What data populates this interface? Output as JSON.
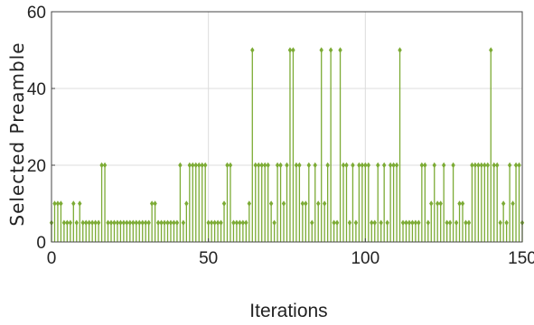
{
  "chart_data": {
    "type": "stem",
    "xlabel": "Iterations",
    "ylabel": "Selected Preamble",
    "xlim": [
      0,
      150
    ],
    "ylim": [
      0,
      60
    ],
    "xticks": [
      "0",
      "50",
      "100",
      "150"
    ],
    "yticks": [
      "0",
      "20",
      "40",
      "60"
    ],
    "grid": true,
    "color": "#7cab35",
    "series": [
      {
        "x": [
          0,
          1,
          2,
          3,
          4,
          5,
          6,
          7,
          8,
          9,
          10,
          11,
          12,
          13,
          14,
          15,
          16,
          17,
          18,
          19,
          20,
          21,
          22,
          23,
          24,
          25,
          26,
          27,
          28,
          29,
          30,
          31,
          32,
          33,
          34,
          35,
          36,
          37,
          38,
          39,
          40,
          41,
          42,
          43,
          44,
          45,
          46,
          47,
          48,
          49,
          50,
          51,
          52,
          53,
          54,
          55,
          56,
          57,
          58,
          59,
          60,
          61,
          62,
          63,
          64,
          65,
          66,
          67,
          68,
          69,
          70,
          71,
          72,
          73,
          74,
          75,
          76,
          77,
          78,
          79,
          80,
          81,
          82,
          83,
          84,
          85,
          86,
          87,
          88,
          89,
          90,
          91,
          92,
          93,
          94,
          95,
          96,
          97,
          98,
          99,
          100,
          101,
          102,
          103,
          104,
          105,
          106,
          107,
          108,
          109,
          110,
          111,
          112,
          113,
          114,
          115,
          116,
          117,
          118,
          119,
          120,
          121,
          122,
          123,
          124,
          125,
          126,
          127,
          128,
          129,
          130,
          131,
          132,
          133,
          134,
          135,
          136,
          137,
          138,
          139,
          140,
          141,
          142,
          143,
          144,
          145,
          146,
          147,
          148,
          149,
          150
        ],
        "y": [
          5,
          10,
          10,
          10,
          5,
          5,
          5,
          10,
          5,
          10,
          5,
          5,
          5,
          5,
          5,
          5,
          20,
          20,
          5,
          5,
          5,
          5,
          5,
          5,
          5,
          5,
          5,
          5,
          5,
          5,
          5,
          5,
          10,
          10,
          5,
          5,
          5,
          5,
          5,
          5,
          5,
          20,
          5,
          10,
          20,
          20,
          20,
          20,
          20,
          20,
          5,
          5,
          5,
          5,
          5,
          10,
          20,
          20,
          5,
          5,
          5,
          5,
          5,
          10,
          50,
          20,
          20,
          20,
          20,
          20,
          10,
          5,
          20,
          20,
          10,
          20,
          50,
          50,
          20,
          20,
          10,
          10,
          20,
          5,
          20,
          10,
          50,
          10,
          20,
          50,
          5,
          5,
          50,
          20,
          20,
          5,
          20,
          5,
          20,
          20,
          20,
          20,
          5,
          5,
          20,
          5,
          20,
          5,
          20,
          20,
          20,
          50,
          5,
          5,
          5,
          5,
          5,
          5,
          20,
          20,
          5,
          10,
          20,
          10,
          10,
          20,
          5,
          5,
          20,
          5,
          10,
          10,
          5,
          5,
          20,
          20,
          20,
          20,
          20,
          20,
          50,
          20,
          20,
          5,
          10,
          5,
          20,
          10,
          20,
          20,
          5
        ]
      }
    ]
  }
}
